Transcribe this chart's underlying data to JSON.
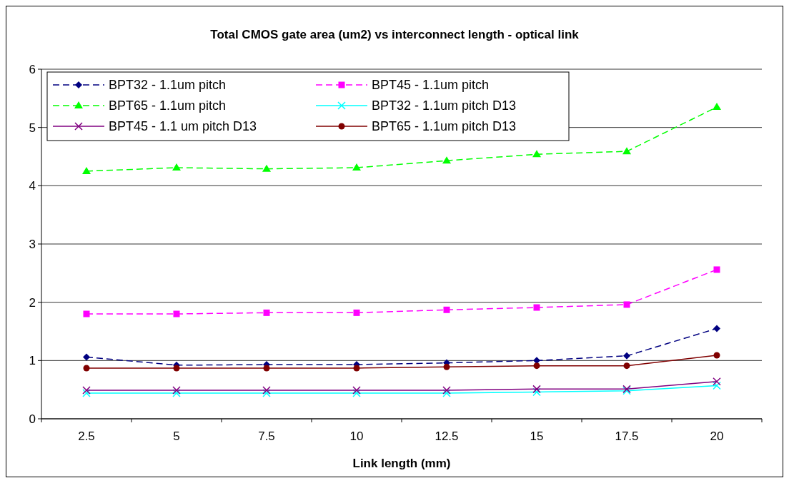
{
  "chart_data": {
    "type": "line",
    "title": "Total CMOS gate area (um2) vs interconnect length - optical link",
    "xlabel": "Link length (mm)",
    "categories": [
      "2.5",
      "5",
      "7.5",
      "10",
      "12.5",
      "15",
      "17.5",
      "20"
    ],
    "ylim": [
      0,
      6
    ],
    "yticks": [
      0,
      1,
      2,
      3,
      4,
      5,
      6
    ],
    "grid": "y",
    "legend": "top left",
    "series": [
      {
        "name": "BPT32 - 1.1um pitch",
        "color": "#000080",
        "marker": "diamond",
        "line_style": "dashed",
        "values": [
          1.06,
          0.92,
          0.93,
          0.93,
          0.96,
          1.0,
          1.08,
          1.55
        ]
      },
      {
        "name": "BPT45 - 1.1um pitch",
        "color": "#ff00ff",
        "marker": "square",
        "line_style": "dashed",
        "values": [
          1.8,
          1.8,
          1.82,
          1.82,
          1.87,
          1.91,
          1.96,
          2.56
        ]
      },
      {
        "name": "BPT65 - 1.1um pitch",
        "color": "#00ff00",
        "marker": "triangle",
        "line_style": "dashed",
        "values": [
          4.25,
          4.31,
          4.29,
          4.31,
          4.43,
          4.54,
          4.59,
          5.35
        ]
      },
      {
        "name": "BPT32 - 1.1um pitch D13",
        "color": "#00ffff",
        "marker": "cross",
        "line_style": "solid",
        "values": [
          0.44,
          0.44,
          0.44,
          0.44,
          0.44,
          0.46,
          0.48,
          0.57
        ]
      },
      {
        "name": "BPT45 - 1.1 um pitch D13",
        "color": "#800080",
        "marker": "cross",
        "line_style": "solid",
        "values": [
          0.49,
          0.49,
          0.49,
          0.49,
          0.49,
          0.51,
          0.51,
          0.64
        ]
      },
      {
        "name": "BPT65 - 1.1um pitch D13",
        "color": "#800000",
        "marker": "circle",
        "line_style": "solid",
        "values": [
          0.87,
          0.87,
          0.87,
          0.87,
          0.89,
          0.91,
          0.91,
          1.09
        ]
      }
    ]
  }
}
